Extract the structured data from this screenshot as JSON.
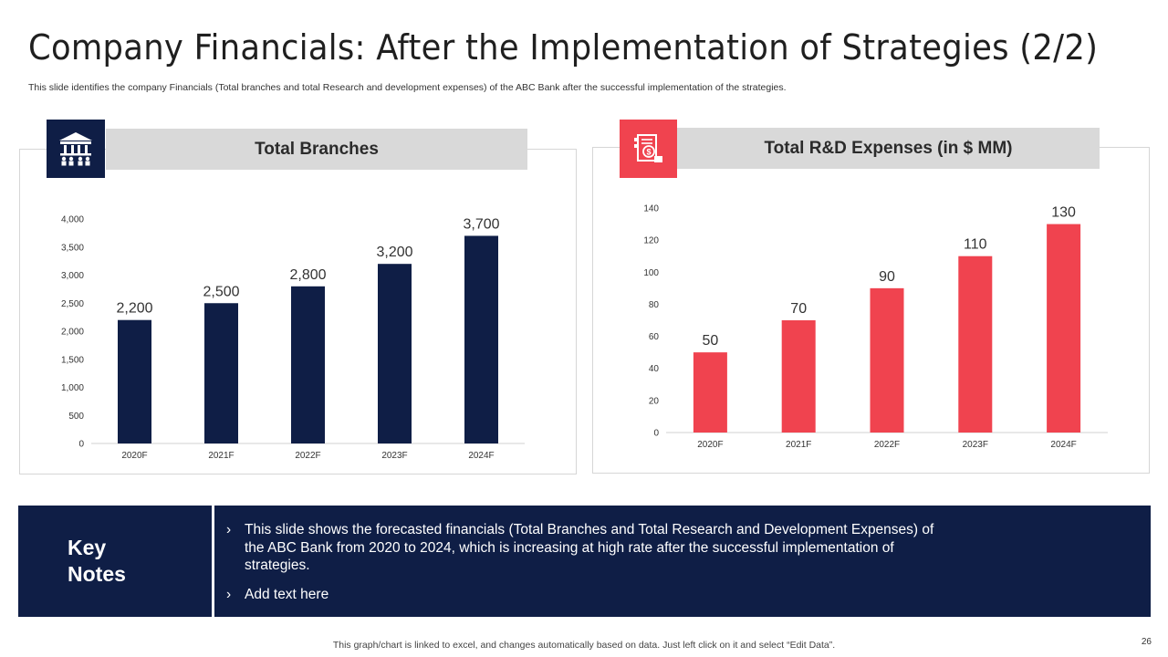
{
  "title": "Company Financials: After the Implementation of Strategies (2/2)",
  "subtitle": "This slide identifies the company Financials (Total branches and total Research and development expenses) of the ABC Bank after the successful implementation of the strategies.",
  "panels": {
    "left": {
      "header": "Total Branches",
      "icon": "bank-building-icon"
    },
    "right": {
      "header": "Total R&D Expenses (in $ MM)",
      "icon": "invoice-dollar-icon"
    }
  },
  "chart_data": [
    {
      "type": "bar",
      "title": "Total Branches",
      "categories": [
        "2020F",
        "2021F",
        "2022F",
        "2023F",
        "2024F"
      ],
      "values": [
        2200,
        2500,
        2800,
        3200,
        3700
      ],
      "value_labels": [
        "2,200",
        "2,500",
        "2,800",
        "3,200",
        "3,700"
      ],
      "ylim": [
        0,
        4000
      ],
      "yticks": [
        0,
        500,
        1000,
        1500,
        2000,
        2500,
        3000,
        3500,
        4000
      ],
      "ytick_labels": [
        "0",
        "500",
        "1,000",
        "1,500",
        "2,000",
        "2,500",
        "3,000",
        "3,500",
        "4,000"
      ],
      "color": "#0f1e46",
      "grid": false
    },
    {
      "type": "bar",
      "title": "Total R&D Expenses (in $ MM)",
      "categories": [
        "2020F",
        "2021F",
        "2022F",
        "2023F",
        "2024F"
      ],
      "values": [
        50,
        70,
        90,
        110,
        130
      ],
      "value_labels": [
        "50",
        "70",
        "90",
        "110",
        "130"
      ],
      "ylim": [
        0,
        140
      ],
      "yticks": [
        0,
        20,
        40,
        60,
        80,
        100,
        120,
        140
      ],
      "ytick_labels": [
        "0",
        "20",
        "40",
        "60",
        "80",
        "100",
        "120",
        "140"
      ],
      "color": "#f0434f",
      "grid": false
    }
  ],
  "notes": {
    "label_line1": "Key",
    "label_line2": "Notes",
    "bullet": "›",
    "items": [
      "This slide shows the forecasted financials (Total Branches and Total Research and Development Expenses) of the ABC Bank from 2020 to 2024, which is increasing at high rate after the successful implementation of strategies.",
      "Add text here"
    ]
  },
  "footer": "This graph/chart is linked to excel, and changes automatically based on data. Just left click on it and select “Edit Data”.",
  "page_number": "26",
  "colors": {
    "navy": "#0f1e46",
    "red": "#f0434f",
    "header_gray": "#d9d9d9"
  }
}
